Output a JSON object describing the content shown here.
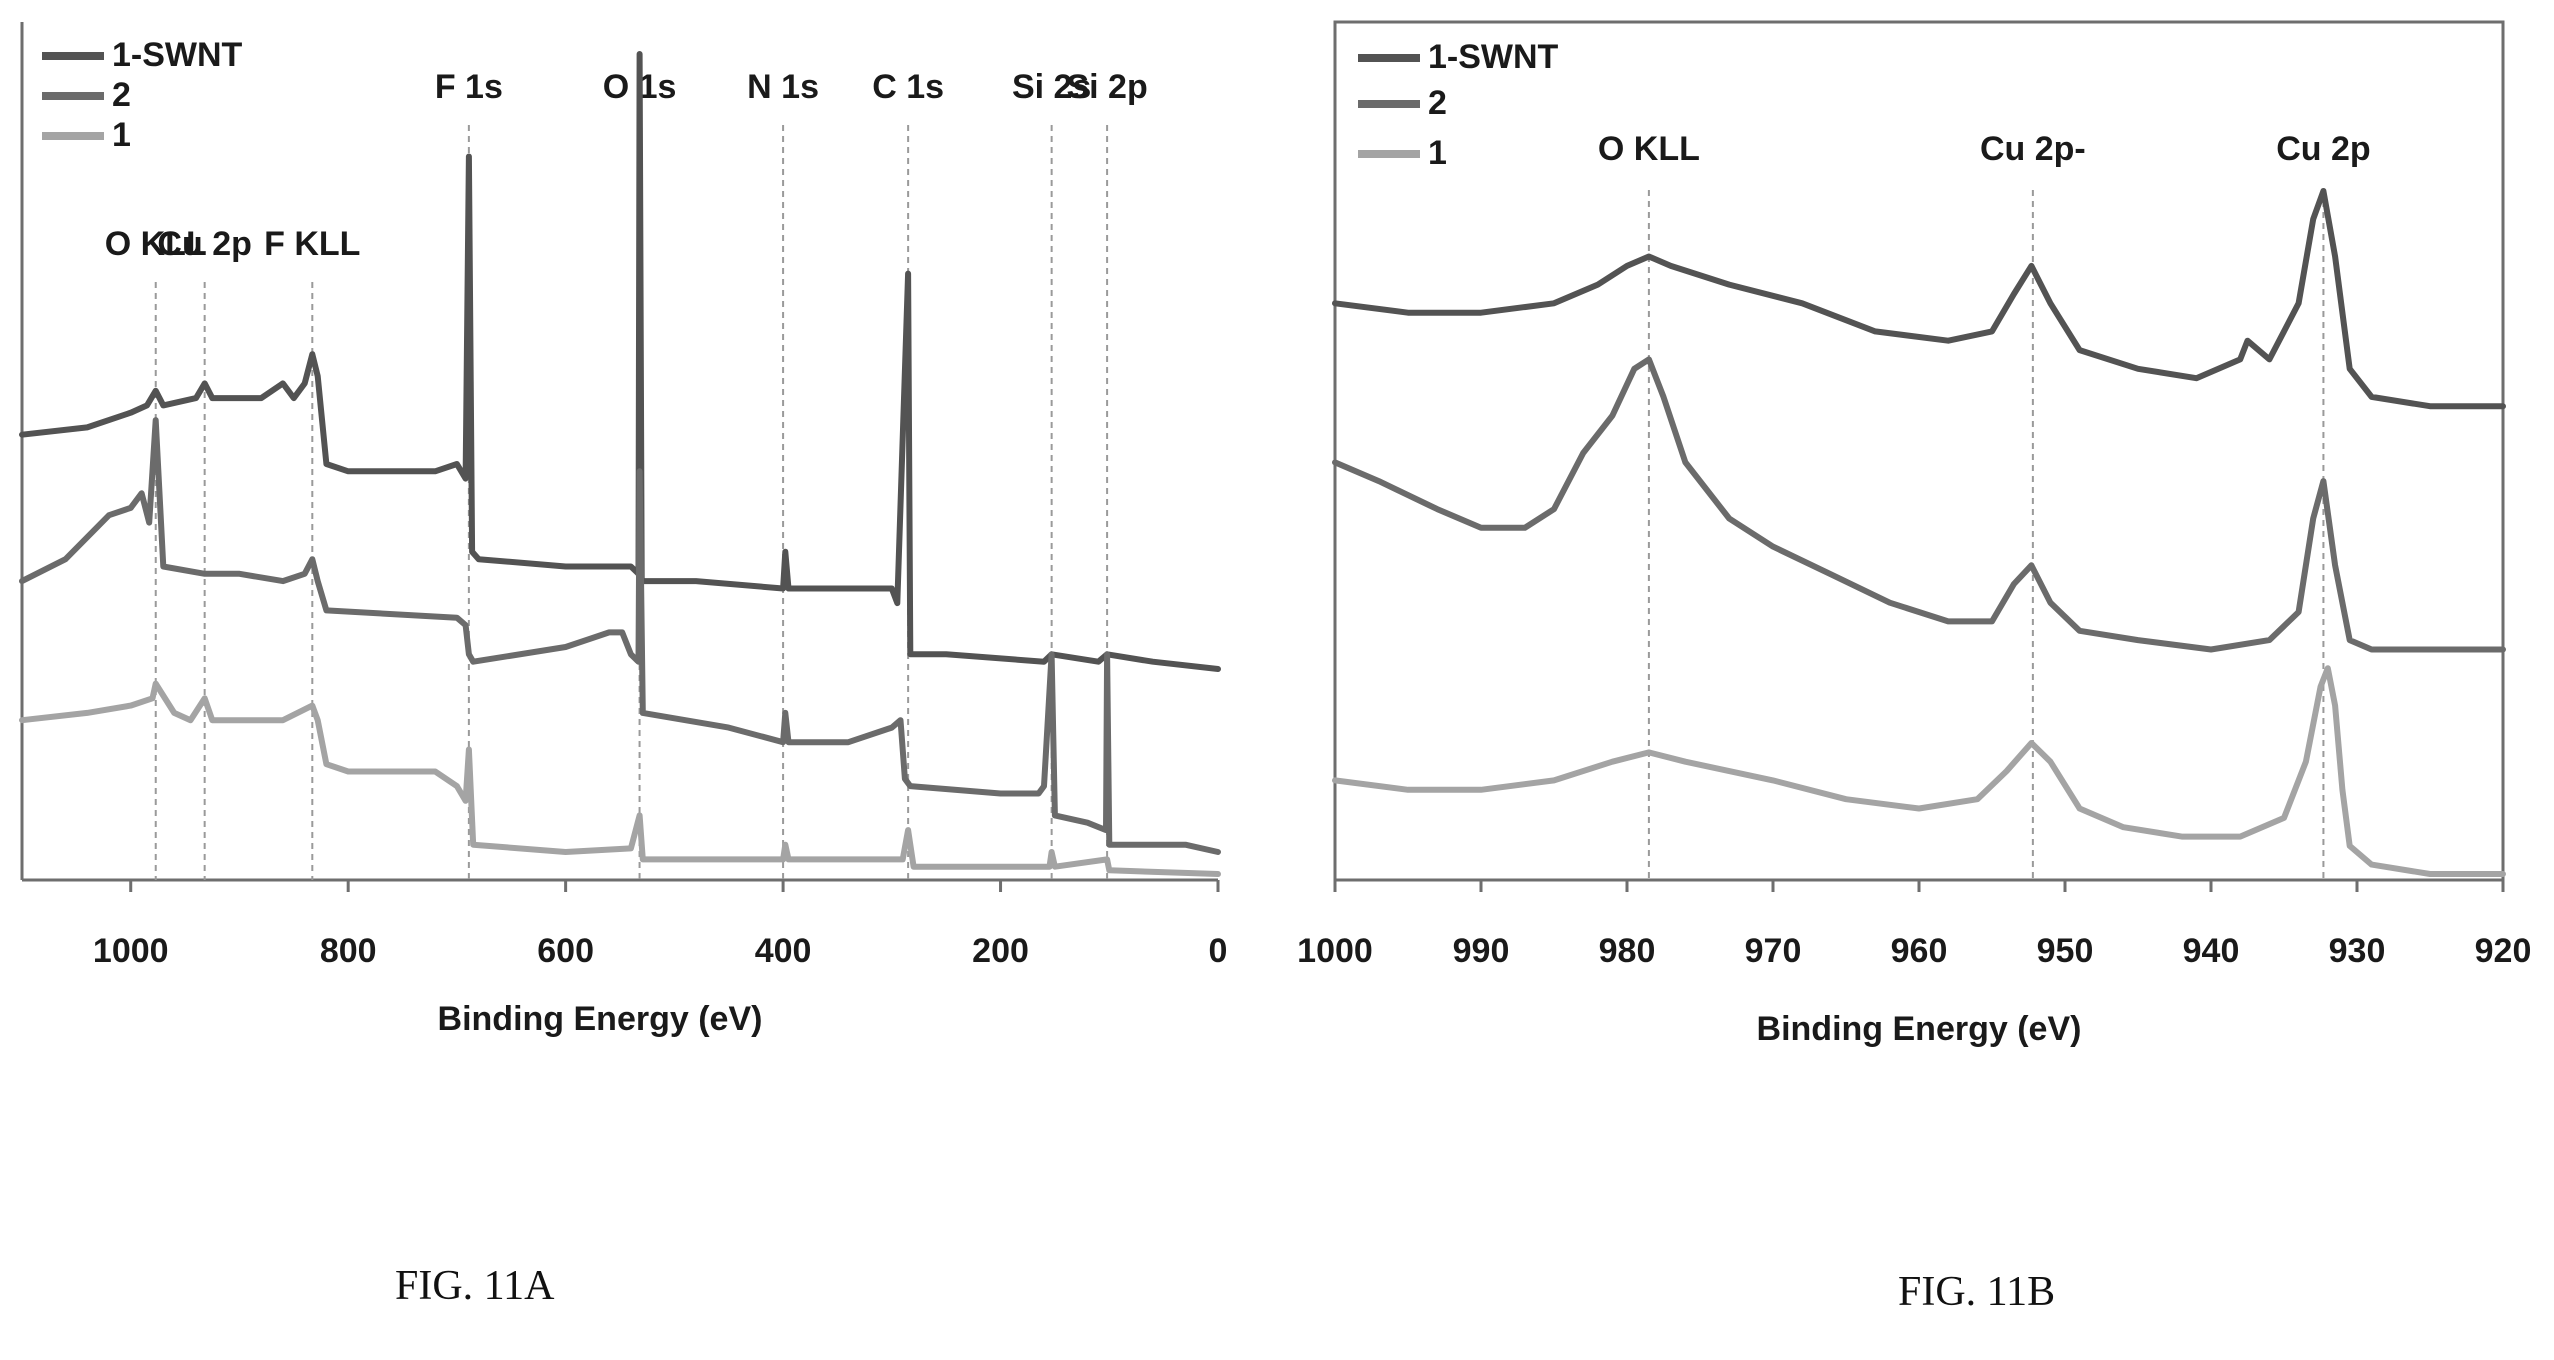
{
  "figures": [
    {
      "caption": "FIG. 11A"
    },
    {
      "caption": "FIG. 11B"
    }
  ],
  "colors": {
    "series_1_swnt": "#535353",
    "series_2": "#6b6b6b",
    "series_1": "#a4a4a4",
    "marker_line": "#9a9a9a",
    "axis": "#6e6e6e"
  },
  "chart_data": [
    {
      "type": "line",
      "xlabel": "Binding Energy (eV)",
      "ylabel": "",
      "xlim": [
        1100,
        0
      ],
      "xdir": "reversed",
      "xticks": [
        1000,
        800,
        600,
        400,
        200,
        0
      ],
      "yticks_shown": false,
      "grid": false,
      "legend_position": "top-left",
      "legend": [
        "1-SWNT",
        "2",
        "1"
      ],
      "annotations": [
        {
          "label": "O KLL",
          "x": 977
        },
        {
          "label": "Cu 2p",
          "x": 932
        },
        {
          "label": "F KLL",
          "x": 833
        },
        {
          "label": "F 1s",
          "x": 689
        },
        {
          "label": "O 1s",
          "x": 532
        },
        {
          "label": "N 1s",
          "x": 400
        },
        {
          "label": "C 1s",
          "x": 285
        },
        {
          "label": "Si 2s",
          "x": 153
        },
        {
          "label": "Si 2p",
          "x": 102
        }
      ],
      "series": [
        {
          "name": "1-SWNT",
          "points": [
            [
              1100,
              0.6
            ],
            [
              1040,
              0.61
            ],
            [
              1000,
              0.63
            ],
            [
              985,
              0.64
            ],
            [
              977,
              0.66
            ],
            [
              970,
              0.64
            ],
            [
              940,
              0.65
            ],
            [
              932,
              0.67
            ],
            [
              925,
              0.65
            ],
            [
              880,
              0.65
            ],
            [
              860,
              0.67
            ],
            [
              850,
              0.65
            ],
            [
              840,
              0.67
            ],
            [
              833,
              0.71
            ],
            [
              828,
              0.68
            ],
            [
              820,
              0.56
            ],
            [
              800,
              0.55
            ],
            [
              720,
              0.55
            ],
            [
              700,
              0.56
            ],
            [
              692,
              0.54
            ],
            [
              689,
              0.98
            ],
            [
              686,
              0.44
            ],
            [
              680,
              0.43
            ],
            [
              600,
              0.42
            ],
            [
              560,
              0.42
            ],
            [
              540,
              0.42
            ],
            [
              533,
              0.41
            ],
            [
              532,
              1.12
            ],
            [
              530,
              0.4
            ],
            [
              480,
              0.4
            ],
            [
              400,
              0.39
            ],
            [
              398,
              0.44
            ],
            [
              395,
              0.39
            ],
            [
              300,
              0.39
            ],
            [
              295,
              0.37
            ],
            [
              285,
              0.82
            ],
            [
              283,
              0.3
            ],
            [
              250,
              0.3
            ],
            [
              160,
              0.29
            ],
            [
              153,
              0.3
            ],
            [
              110,
              0.29
            ],
            [
              102,
              0.3
            ],
            [
              60,
              0.29
            ],
            [
              0,
              0.28
            ]
          ]
        },
        {
          "name": "2",
          "points": [
            [
              1100,
              0.4
            ],
            [
              1060,
              0.43
            ],
            [
              1020,
              0.49
            ],
            [
              1000,
              0.5
            ],
            [
              990,
              0.52
            ],
            [
              983,
              0.48
            ],
            [
              977,
              0.62
            ],
            [
              970,
              0.42
            ],
            [
              932,
              0.41
            ],
            [
              900,
              0.41
            ],
            [
              860,
              0.4
            ],
            [
              840,
              0.41
            ],
            [
              833,
              0.43
            ],
            [
              828,
              0.4
            ],
            [
              820,
              0.36
            ],
            [
              700,
              0.35
            ],
            [
              692,
              0.34
            ],
            [
              689,
              0.3
            ],
            [
              685,
              0.29
            ],
            [
              600,
              0.31
            ],
            [
              560,
              0.33
            ],
            [
              548,
              0.33
            ],
            [
              540,
              0.3
            ],
            [
              533,
              0.29
            ],
            [
              532,
              0.55
            ],
            [
              529,
              0.22
            ],
            [
              450,
              0.2
            ],
            [
              400,
              0.18
            ],
            [
              398,
              0.22
            ],
            [
              395,
              0.18
            ],
            [
              340,
              0.18
            ],
            [
              300,
              0.2
            ],
            [
              292,
              0.21
            ],
            [
              288,
              0.13
            ],
            [
              283,
              0.12
            ],
            [
              200,
              0.11
            ],
            [
              165,
              0.11
            ],
            [
              160,
              0.12
            ],
            [
              153,
              0.3
            ],
            [
              150,
              0.08
            ],
            [
              120,
              0.07
            ],
            [
              103,
              0.06
            ],
            [
              102,
              0.3
            ],
            [
              100,
              0.04
            ],
            [
              60,
              0.04
            ],
            [
              30,
              0.04
            ],
            [
              0,
              0.03
            ]
          ]
        },
        {
          "name": "1",
          "points": [
            [
              1100,
              0.21
            ],
            [
              1040,
              0.22
            ],
            [
              1000,
              0.23
            ],
            [
              980,
              0.24
            ],
            [
              977,
              0.26
            ],
            [
              960,
              0.22
            ],
            [
              945,
              0.21
            ],
            [
              932,
              0.24
            ],
            [
              925,
              0.21
            ],
            [
              860,
              0.21
            ],
            [
              833,
              0.23
            ],
            [
              828,
              0.21
            ],
            [
              820,
              0.15
            ],
            [
              800,
              0.14
            ],
            [
              720,
              0.14
            ],
            [
              700,
              0.12
            ],
            [
              692,
              0.1
            ],
            [
              689,
              0.17
            ],
            [
              685,
              0.04
            ],
            [
              600,
              0.03
            ],
            [
              540,
              0.035
            ],
            [
              532,
              0.08
            ],
            [
              529,
              0.02
            ],
            [
              400,
              0.02
            ],
            [
              398,
              0.04
            ],
            [
              395,
              0.02
            ],
            [
              290,
              0.02
            ],
            [
              285,
              0.06
            ],
            [
              280,
              0.01
            ],
            [
              155,
              0.01
            ],
            [
              153,
              0.03
            ],
            [
              150,
              0.01
            ],
            [
              102,
              0.02
            ],
            [
              100,
              0.005
            ],
            [
              0,
              0.0
            ]
          ]
        }
      ]
    },
    {
      "type": "line",
      "xlabel": "Binding Energy (eV)",
      "ylabel": "",
      "xlim": [
        1000,
        920
      ],
      "xdir": "reversed",
      "xticks": [
        1000,
        990,
        980,
        970,
        960,
        950,
        940,
        930,
        920
      ],
      "yticks_shown": false,
      "grid": false,
      "legend_position": "top-left",
      "legend": [
        "1-SWNT",
        "2",
        "1"
      ],
      "annotations": [
        {
          "label": "O KLL",
          "x": 978.5
        },
        {
          "label": "Cu 2p-",
          "x": 952.2
        },
        {
          "label": "Cu 2p",
          "x": 932.3
        }
      ],
      "series": [
        {
          "name": "1-SWNT",
          "points": [
            [
              1000,
              0.61
            ],
            [
              995,
              0.6
            ],
            [
              990,
              0.6
            ],
            [
              985,
              0.61
            ],
            [
              982,
              0.63
            ],
            [
              980,
              0.65
            ],
            [
              978.5,
              0.66
            ],
            [
              977,
              0.65
            ],
            [
              973,
              0.63
            ],
            [
              968,
              0.61
            ],
            [
              963,
              0.58
            ],
            [
              958,
              0.57
            ],
            [
              955,
              0.58
            ],
            [
              953.5,
              0.62
            ],
            [
              952.3,
              0.65
            ],
            [
              951,
              0.61
            ],
            [
              949,
              0.56
            ],
            [
              945,
              0.54
            ],
            [
              941,
              0.53
            ],
            [
              938,
              0.55
            ],
            [
              937.5,
              0.57
            ],
            [
              936,
              0.55
            ],
            [
              934,
              0.61
            ],
            [
              933,
              0.7
            ],
            [
              932.3,
              0.73
            ],
            [
              931.5,
              0.66
            ],
            [
              930.5,
              0.54
            ],
            [
              929,
              0.51
            ],
            [
              925,
              0.5
            ],
            [
              920,
              0.5
            ]
          ]
        },
        {
          "name": "2",
          "points": [
            [
              1000,
              0.44
            ],
            [
              997,
              0.42
            ],
            [
              993,
              0.39
            ],
            [
              990,
              0.37
            ],
            [
              987,
              0.37
            ],
            [
              985,
              0.39
            ],
            [
              983,
              0.45
            ],
            [
              981,
              0.49
            ],
            [
              979.5,
              0.54
            ],
            [
              978.5,
              0.55
            ],
            [
              977.5,
              0.51
            ],
            [
              976,
              0.44
            ],
            [
              973,
              0.38
            ],
            [
              970,
              0.35
            ],
            [
              966,
              0.32
            ],
            [
              962,
              0.29
            ],
            [
              958,
              0.27
            ],
            [
              955,
              0.27
            ],
            [
              953.5,
              0.31
            ],
            [
              952.3,
              0.33
            ],
            [
              951,
              0.29
            ],
            [
              949,
              0.26
            ],
            [
              945,
              0.25
            ],
            [
              940,
              0.24
            ],
            [
              936,
              0.25
            ],
            [
              934,
              0.28
            ],
            [
              933,
              0.38
            ],
            [
              932.3,
              0.42
            ],
            [
              931.5,
              0.33
            ],
            [
              930.5,
              0.25
            ],
            [
              929,
              0.24
            ],
            [
              925,
              0.24
            ],
            [
              920,
              0.24
            ]
          ]
        },
        {
          "name": "1",
          "points": [
            [
              1000,
              0.1
            ],
            [
              995,
              0.09
            ],
            [
              990,
              0.09
            ],
            [
              985,
              0.1
            ],
            [
              981,
              0.12
            ],
            [
              978.5,
              0.13
            ],
            [
              976,
              0.12
            ],
            [
              970,
              0.1
            ],
            [
              965,
              0.08
            ],
            [
              960,
              0.07
            ],
            [
              956,
              0.08
            ],
            [
              954,
              0.11
            ],
            [
              952.3,
              0.14
            ],
            [
              951,
              0.12
            ],
            [
              949,
              0.07
            ],
            [
              946,
              0.05
            ],
            [
              942,
              0.04
            ],
            [
              938,
              0.04
            ],
            [
              935,
              0.06
            ],
            [
              933.5,
              0.12
            ],
            [
              932.5,
              0.2
            ],
            [
              932,
              0.22
            ],
            [
              931.5,
              0.18
            ],
            [
              931,
              0.09
            ],
            [
              930.5,
              0.03
            ],
            [
              929,
              0.01
            ],
            [
              925,
              0.0
            ],
            [
              920,
              0.0
            ]
          ]
        }
      ]
    }
  ]
}
